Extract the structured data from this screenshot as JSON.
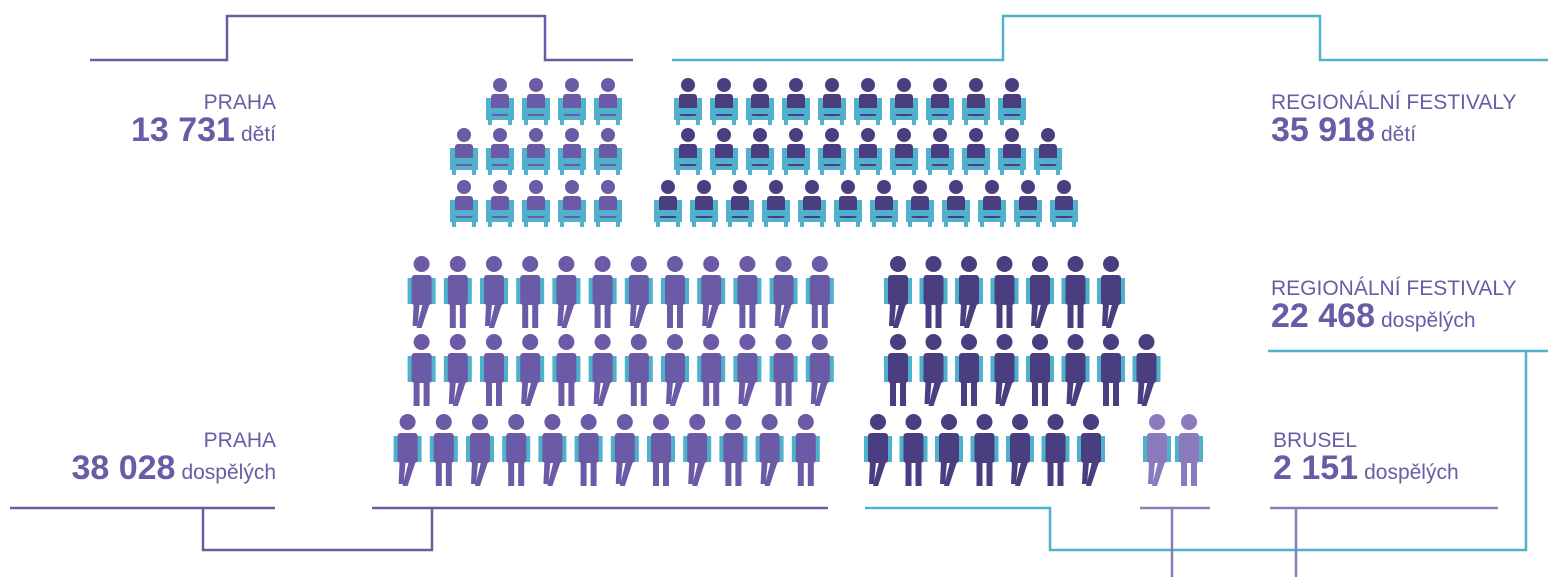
{
  "colors": {
    "purple": "#6b5aa6",
    "dark_purple": "#4a3d80",
    "light_purple": "#8a7bbd",
    "cyan": "#4fb1cc",
    "line_purple": "#6b5aa6",
    "line_cyan": "#4fb1cc"
  },
  "icons": {
    "seated": "seated-person-icon",
    "standing": "standing-person-icon"
  },
  "labels": {
    "praha_children": {
      "place": "PRAHA",
      "number": "13 731",
      "unit": "dětí"
    },
    "praha_adults": {
      "place": "PRAHA",
      "number": "38 028",
      "unit": "dospělých"
    },
    "regional_children": {
      "place": "REGIONÁLNÍ FESTIVALY",
      "number": "35 918",
      "unit": "dětí"
    },
    "regional_adults": {
      "place": "REGIONÁLNÍ FESTIVALY",
      "number": "22 468",
      "unit": "dospělých"
    },
    "brusel_adults": {
      "place": "BRUSEL",
      "number": "2 151",
      "unit": "dospělých"
    }
  },
  "groups": {
    "praha_children": {
      "icon": "seated",
      "color": "purple",
      "rows": [
        4,
        5,
        5
      ]
    },
    "regional_children": {
      "icon": "seated",
      "color": "dark_purple",
      "rows": [
        10,
        11,
        12
      ]
    },
    "praha_adults": {
      "icon": "standing",
      "color": "purple",
      "rows": [
        12,
        12,
        12
      ]
    },
    "regional_adults": {
      "icon": "standing",
      "color": "dark_purple",
      "rows": [
        7,
        8,
        7
      ]
    },
    "brusel_adults": {
      "icon": "standing",
      "color": "light_purple",
      "rows": [
        2
      ]
    }
  }
}
